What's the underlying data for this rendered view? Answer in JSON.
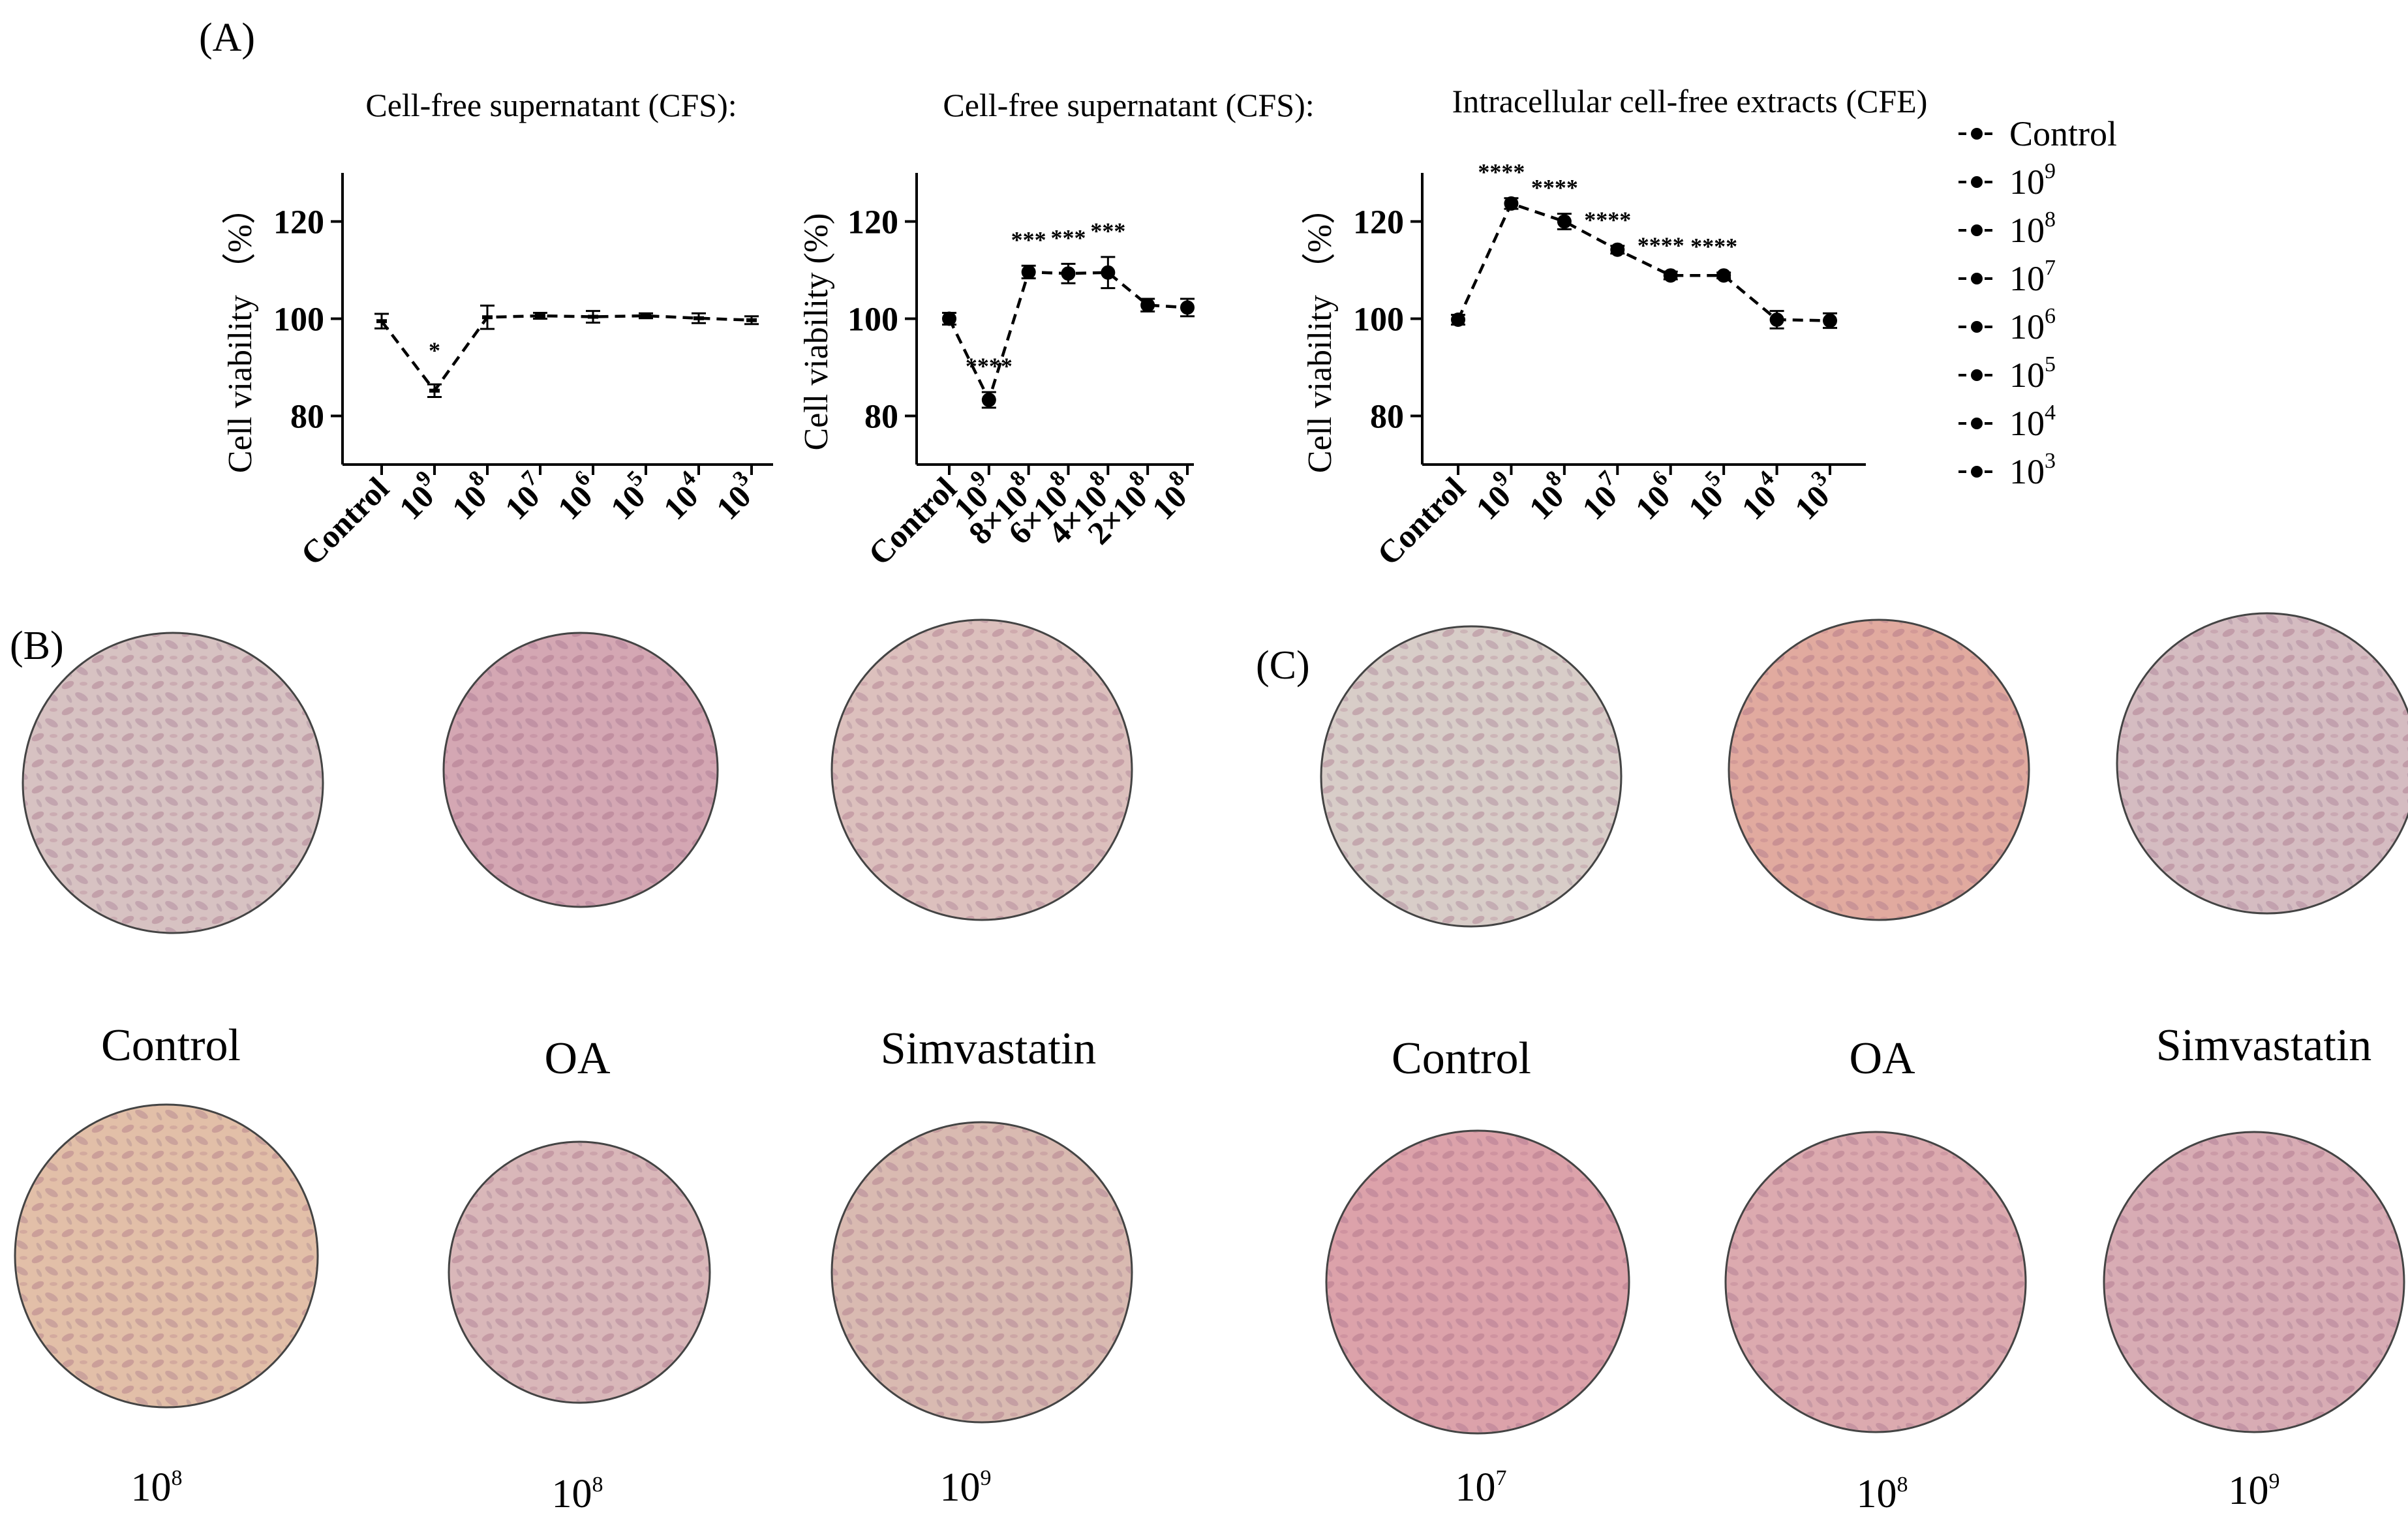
{
  "panels": {
    "A": "(A)",
    "B": "(B)",
    "C": "(C)"
  },
  "chart_data": [
    {
      "type": "line",
      "title": "Cell-free supernatant (CFS):",
      "ylabel": "Cell viability （%）",
      "ylim": [
        70,
        130
      ],
      "yticks": [
        80,
        100,
        120
      ],
      "categories": [
        {
          "base": "Control",
          "sup": ""
        },
        {
          "base": "10",
          "sup": "9"
        },
        {
          "base": "10",
          "sup": "8"
        },
        {
          "base": "10",
          "sup": "7"
        },
        {
          "base": "10",
          "sup": "6"
        },
        {
          "base": "10",
          "sup": "5"
        },
        {
          "base": "10",
          "sup": "4"
        },
        {
          "base": "10",
          "sup": "3"
        }
      ],
      "values": [
        99.5,
        85.2,
        100.3,
        100.6,
        100.4,
        100.6,
        100.1,
        99.7
      ],
      "errors": [
        1.5,
        1.3,
        2.4,
        0.6,
        1.2,
        0.5,
        1.0,
        0.8
      ],
      "significance": [
        "",
        "*",
        "",
        "",
        "",
        "",
        "",
        ""
      ],
      "marker": "tick",
      "line_style": "dashed",
      "grid": false
    },
    {
      "type": "line",
      "title": "Cell-free supernatant (CFS):",
      "ylabel": "Cell viability (%)",
      "ylim": [
        70,
        130
      ],
      "yticks": [
        80,
        100,
        120
      ],
      "categories": [
        {
          "base": "Control",
          "sup": ""
        },
        {
          "base": "10",
          "sup": "9"
        },
        {
          "base": "8×10",
          "sup": "8"
        },
        {
          "base": "6×10",
          "sup": "8"
        },
        {
          "base": "4×10",
          "sup": "8"
        },
        {
          "base": "2×10",
          "sup": "8"
        },
        {
          "base": "10",
          "sup": "8"
        }
      ],
      "values": [
        100.0,
        83.3,
        109.6,
        109.3,
        109.5,
        102.8,
        102.3
      ],
      "errors": [
        1.2,
        1.6,
        1.3,
        2.0,
        3.2,
        1.3,
        1.8
      ],
      "significance": [
        "",
        "****",
        "***",
        "***",
        "***",
        "",
        ""
      ],
      "marker": "dot",
      "line_style": "dashed",
      "grid": false
    },
    {
      "type": "line",
      "title": "Intracellular cell-free extracts (CFE)",
      "ylabel": "Cell viability （%）",
      "ylim": [
        70,
        130
      ],
      "yticks": [
        80,
        100,
        120
      ],
      "categories": [
        {
          "base": "Control",
          "sup": ""
        },
        {
          "base": "10",
          "sup": "9"
        },
        {
          "base": "10",
          "sup": "8"
        },
        {
          "base": "10",
          "sup": "7"
        },
        {
          "base": "10",
          "sup": "6"
        },
        {
          "base": "10",
          "sup": "5"
        },
        {
          "base": "10",
          "sup": "4"
        },
        {
          "base": "10",
          "sup": "3"
        }
      ],
      "values": [
        99.8,
        123.7,
        120.0,
        114.2,
        108.9,
        108.9,
        99.8,
        99.6
      ],
      "errors": [
        1.0,
        1.1,
        1.6,
        0.8,
        0.8,
        0.6,
        1.8,
        1.5
      ],
      "significance": [
        "",
        "****",
        "****",
        "****",
        "****",
        "****",
        "",
        ""
      ],
      "marker": "dot",
      "line_style": "dashed",
      "grid": false
    }
  ],
  "legend": {
    "placement": "right",
    "entries": [
      {
        "base": "Control",
        "sup": ""
      },
      {
        "base": "10",
        "sup": "9"
      },
      {
        "base": "10",
        "sup": "8"
      },
      {
        "base": "10",
        "sup": "7"
      },
      {
        "base": "10",
        "sup": "6"
      },
      {
        "base": "10",
        "sup": "5"
      },
      {
        "base": "10",
        "sup": "4"
      },
      {
        "base": "10",
        "sup": "3"
      }
    ]
  },
  "micrographs": {
    "B": {
      "top": [
        {
          "label": "Control",
          "tone": "#d7c2c2"
        },
        {
          "label": "OA",
          "tone": "#d4a7b3"
        },
        {
          "label": "Simvastatin",
          "tone": "#dcc0bd"
        }
      ],
      "bottom": [
        {
          "base": "10",
          "sup": "8",
          "tone": "#e2bfa8"
        },
        {
          "base": "10",
          "sup": "8",
          "tone": "#d9b7b9"
        },
        {
          "base": "10",
          "sup": "9",
          "tone": "#d9bab1"
        }
      ]
    },
    "C": {
      "top": [
        {
          "label": "Control",
          "tone": "#d8cdc8"
        },
        {
          "label": "OA",
          "tone": "#e1aa9f"
        },
        {
          "label": "Simvastatin",
          "tone": "#d5bcc1"
        }
      ],
      "bottom": [
        {
          "base": "10",
          "sup": "7",
          "tone": "#dca2aa"
        },
        {
          "base": "10",
          "sup": "8",
          "tone": "#dcaaaf"
        },
        {
          "base": "10",
          "sup": "9",
          "tone": "#d8acb4"
        }
      ]
    }
  }
}
